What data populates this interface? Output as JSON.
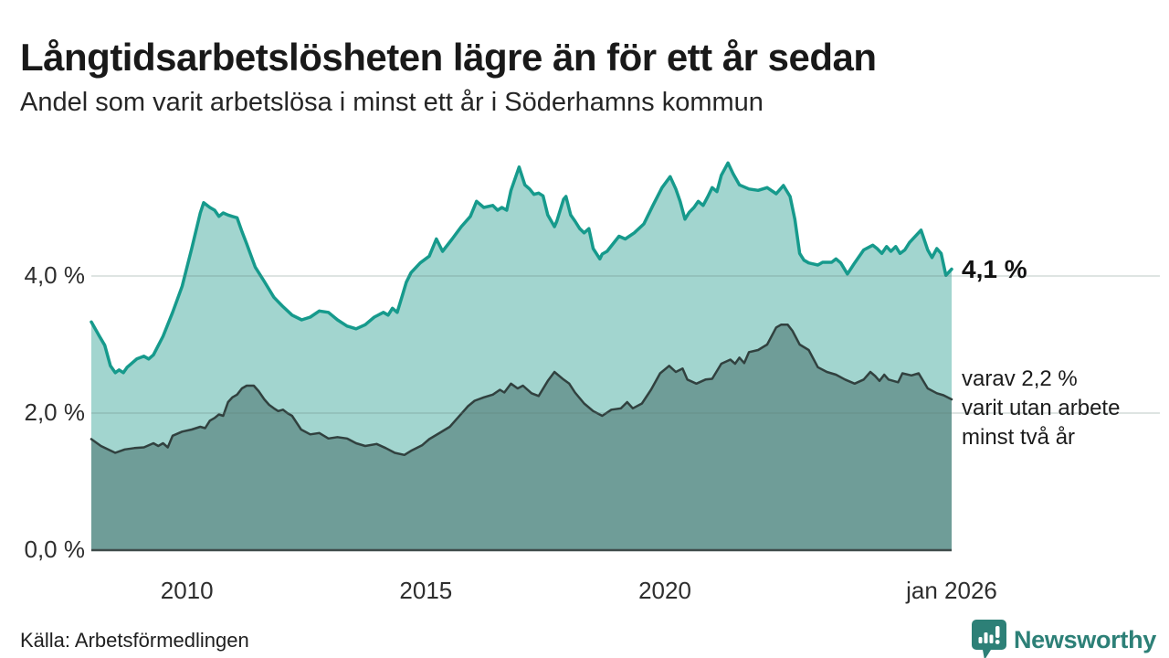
{
  "header": {
    "title": "Långtidsarbetslösheten lägre än för ett år sedan",
    "subtitle": "Andel som varit arbetslösa i minst ett år i Söderhamns kommun"
  },
  "footer": {
    "source": "Källa: Arbetsförmedlingen",
    "brand": "Newsworthy"
  },
  "colors": {
    "line_total": "#169a8c",
    "fill_total": "#a2d5cf",
    "line_subset": "#31413f",
    "fill_subset": "#6f9d98",
    "grid": "#5f7a78",
    "baseline": "#3f4b4a",
    "brand_teal": "#2d8077"
  },
  "chart_data": {
    "type": "area",
    "title": "Långtidsarbetslösheten lägre än för ett år sedan",
    "subtitle": "Andel som varit arbetslösa i minst ett år i Söderhamns kommun",
    "xlabel": "",
    "ylabel": "%",
    "x_range": [
      2008,
      2026
    ],
    "y_range": [
      0,
      6
    ],
    "grid": "horizontal",
    "legend": "annotated-at-line-end",
    "x_axis": {
      "ticks": [
        {
          "year": 2010,
          "label": "2010"
        },
        {
          "year": 2015,
          "label": "2015"
        },
        {
          "year": 2020,
          "label": "2020"
        },
        {
          "year": 2026,
          "label": "jan 2026"
        }
      ]
    },
    "y_axis": {
      "unit": "%",
      "ticks": [
        {
          "value": 0,
          "label": "0,0 %"
        },
        {
          "value": 2,
          "label": "2,0 %"
        },
        {
          "value": 4,
          "label": "4,0 %"
        }
      ]
    },
    "series": [
      {
        "name": "minst ett år",
        "end_value_label": "4,1 %",
        "points": [
          [
            2008.0,
            3.33
          ],
          [
            2008.17,
            3.12
          ],
          [
            2008.28,
            2.99
          ],
          [
            2008.4,
            2.69
          ],
          [
            2008.5,
            2.59
          ],
          [
            2008.58,
            2.63
          ],
          [
            2008.67,
            2.59
          ],
          [
            2008.75,
            2.67
          ],
          [
            2008.85,
            2.73
          ],
          [
            2008.95,
            2.79
          ],
          [
            2009.1,
            2.83
          ],
          [
            2009.2,
            2.79
          ],
          [
            2009.3,
            2.85
          ],
          [
            2009.5,
            3.12
          ],
          [
            2009.7,
            3.47
          ],
          [
            2009.9,
            3.85
          ],
          [
            2010.1,
            4.4
          ],
          [
            2010.28,
            4.92
          ],
          [
            2010.35,
            5.07
          ],
          [
            2010.48,
            5.0
          ],
          [
            2010.58,
            4.96
          ],
          [
            2010.67,
            4.87
          ],
          [
            2010.76,
            4.92
          ],
          [
            2010.86,
            4.89
          ],
          [
            2010.95,
            4.87
          ],
          [
            2011.05,
            4.85
          ],
          [
            2011.15,
            4.65
          ],
          [
            2011.25,
            4.47
          ],
          [
            2011.43,
            4.13
          ],
          [
            2011.62,
            3.92
          ],
          [
            2011.82,
            3.69
          ],
          [
            2012.0,
            3.56
          ],
          [
            2012.2,
            3.43
          ],
          [
            2012.4,
            3.36
          ],
          [
            2012.58,
            3.4
          ],
          [
            2012.77,
            3.49
          ],
          [
            2012.96,
            3.47
          ],
          [
            2013.15,
            3.36
          ],
          [
            2013.35,
            3.27
          ],
          [
            2013.54,
            3.23
          ],
          [
            2013.73,
            3.29
          ],
          [
            2013.92,
            3.4
          ],
          [
            2014.11,
            3.47
          ],
          [
            2014.21,
            3.43
          ],
          [
            2014.3,
            3.53
          ],
          [
            2014.4,
            3.47
          ],
          [
            2014.5,
            3.7
          ],
          [
            2014.59,
            3.91
          ],
          [
            2014.69,
            4.05
          ],
          [
            2014.88,
            4.19
          ],
          [
            2015.07,
            4.29
          ],
          [
            2015.22,
            4.54
          ],
          [
            2015.35,
            4.36
          ],
          [
            2015.55,
            4.54
          ],
          [
            2015.74,
            4.72
          ],
          [
            2015.93,
            4.87
          ],
          [
            2016.06,
            5.09
          ],
          [
            2016.21,
            5.0
          ],
          [
            2016.4,
            5.03
          ],
          [
            2016.5,
            4.96
          ],
          [
            2016.59,
            5.0
          ],
          [
            2016.69,
            4.96
          ],
          [
            2016.78,
            5.25
          ],
          [
            2016.95,
            5.59
          ],
          [
            2017.07,
            5.33
          ],
          [
            2017.17,
            5.27
          ],
          [
            2017.26,
            5.19
          ],
          [
            2017.36,
            5.21
          ],
          [
            2017.45,
            5.17
          ],
          [
            2017.55,
            4.89
          ],
          [
            2017.69,
            4.72
          ],
          [
            2017.74,
            4.8
          ],
          [
            2017.88,
            5.12
          ],
          [
            2017.93,
            5.16
          ],
          [
            2018.03,
            4.89
          ],
          [
            2018.12,
            4.8
          ],
          [
            2018.22,
            4.69
          ],
          [
            2018.31,
            4.63
          ],
          [
            2018.41,
            4.69
          ],
          [
            2018.5,
            4.4
          ],
          [
            2018.64,
            4.25
          ],
          [
            2018.69,
            4.32
          ],
          [
            2018.79,
            4.36
          ],
          [
            2019.04,
            4.58
          ],
          [
            2019.17,
            4.54
          ],
          [
            2019.36,
            4.63
          ],
          [
            2019.56,
            4.76
          ],
          [
            2019.75,
            5.03
          ],
          [
            2019.94,
            5.29
          ],
          [
            2020.11,
            5.45
          ],
          [
            2020.23,
            5.27
          ],
          [
            2020.32,
            5.09
          ],
          [
            2020.42,
            4.83
          ],
          [
            2020.51,
            4.93
          ],
          [
            2020.61,
            5.0
          ],
          [
            2020.7,
            5.09
          ],
          [
            2020.8,
            5.03
          ],
          [
            2020.9,
            5.16
          ],
          [
            2020.99,
            5.29
          ],
          [
            2021.09,
            5.23
          ],
          [
            2021.18,
            5.47
          ],
          [
            2021.32,
            5.65
          ],
          [
            2021.43,
            5.49
          ],
          [
            2021.56,
            5.33
          ],
          [
            2021.76,
            5.27
          ],
          [
            2021.95,
            5.25
          ],
          [
            2022.14,
            5.29
          ],
          [
            2022.33,
            5.2
          ],
          [
            2022.48,
            5.32
          ],
          [
            2022.62,
            5.16
          ],
          [
            2022.72,
            4.83
          ],
          [
            2022.82,
            4.33
          ],
          [
            2022.91,
            4.23
          ],
          [
            2023.01,
            4.19
          ],
          [
            2023.2,
            4.16
          ],
          [
            2023.3,
            4.2
          ],
          [
            2023.49,
            4.2
          ],
          [
            2023.58,
            4.25
          ],
          [
            2023.68,
            4.19
          ],
          [
            2023.82,
            4.03
          ],
          [
            2023.97,
            4.19
          ],
          [
            2024.16,
            4.38
          ],
          [
            2024.35,
            4.45
          ],
          [
            2024.44,
            4.4
          ],
          [
            2024.54,
            4.33
          ],
          [
            2024.64,
            4.43
          ],
          [
            2024.73,
            4.36
          ],
          [
            2024.83,
            4.43
          ],
          [
            2024.92,
            4.33
          ],
          [
            2025.02,
            4.38
          ],
          [
            2025.12,
            4.49
          ],
          [
            2025.36,
            4.67
          ],
          [
            2025.5,
            4.38
          ],
          [
            2025.59,
            4.27
          ],
          [
            2025.69,
            4.4
          ],
          [
            2025.78,
            4.33
          ],
          [
            2025.88,
            4.01
          ],
          [
            2026.0,
            4.1
          ]
        ]
      },
      {
        "name": "minst två år",
        "end_value_label": "2,2 %",
        "points": [
          [
            2008.0,
            1.62
          ],
          [
            2008.2,
            1.52
          ],
          [
            2008.5,
            1.42
          ],
          [
            2008.7,
            1.47
          ],
          [
            2008.9,
            1.49
          ],
          [
            2009.1,
            1.5
          ],
          [
            2009.3,
            1.56
          ],
          [
            2009.4,
            1.52
          ],
          [
            2009.5,
            1.56
          ],
          [
            2009.6,
            1.5
          ],
          [
            2009.7,
            1.67
          ],
          [
            2009.9,
            1.73
          ],
          [
            2010.1,
            1.76
          ],
          [
            2010.28,
            1.8
          ],
          [
            2010.38,
            1.78
          ],
          [
            2010.48,
            1.89
          ],
          [
            2010.58,
            1.93
          ],
          [
            2010.67,
            1.98
          ],
          [
            2010.76,
            1.96
          ],
          [
            2010.86,
            2.16
          ],
          [
            2010.95,
            2.23
          ],
          [
            2011.05,
            2.27
          ],
          [
            2011.15,
            2.36
          ],
          [
            2011.25,
            2.4
          ],
          [
            2011.4,
            2.4
          ],
          [
            2011.5,
            2.32
          ],
          [
            2011.62,
            2.2
          ],
          [
            2011.72,
            2.12
          ],
          [
            2011.82,
            2.07
          ],
          [
            2011.91,
            2.03
          ],
          [
            2012.01,
            2.05
          ],
          [
            2012.1,
            2.0
          ],
          [
            2012.2,
            1.96
          ],
          [
            2012.39,
            1.76
          ],
          [
            2012.58,
            1.69
          ],
          [
            2012.77,
            1.71
          ],
          [
            2012.96,
            1.63
          ],
          [
            2013.15,
            1.65
          ],
          [
            2013.35,
            1.63
          ],
          [
            2013.54,
            1.56
          ],
          [
            2013.73,
            1.52
          ],
          [
            2013.97,
            1.55
          ],
          [
            2014.16,
            1.49
          ],
          [
            2014.35,
            1.42
          ],
          [
            2014.55,
            1.39
          ],
          [
            2014.69,
            1.45
          ],
          [
            2014.92,
            1.53
          ],
          [
            2015.07,
            1.62
          ],
          [
            2015.31,
            1.72
          ],
          [
            2015.5,
            1.8
          ],
          [
            2015.69,
            1.95
          ],
          [
            2015.88,
            2.1
          ],
          [
            2016.02,
            2.18
          ],
          [
            2016.21,
            2.23
          ],
          [
            2016.4,
            2.27
          ],
          [
            2016.55,
            2.34
          ],
          [
            2016.64,
            2.3
          ],
          [
            2016.78,
            2.43
          ],
          [
            2016.92,
            2.36
          ],
          [
            2017.03,
            2.4
          ],
          [
            2017.21,
            2.29
          ],
          [
            2017.36,
            2.25
          ],
          [
            2017.55,
            2.47
          ],
          [
            2017.69,
            2.6
          ],
          [
            2017.88,
            2.49
          ],
          [
            2018.0,
            2.43
          ],
          [
            2018.12,
            2.3
          ],
          [
            2018.31,
            2.14
          ],
          [
            2018.5,
            2.03
          ],
          [
            2018.69,
            1.96
          ],
          [
            2018.88,
            2.05
          ],
          [
            2019.08,
            2.07
          ],
          [
            2019.21,
            2.16
          ],
          [
            2019.33,
            2.07
          ],
          [
            2019.52,
            2.14
          ],
          [
            2019.71,
            2.34
          ],
          [
            2019.9,
            2.58
          ],
          [
            2020.09,
            2.69
          ],
          [
            2020.23,
            2.6
          ],
          [
            2020.37,
            2.65
          ],
          [
            2020.47,
            2.49
          ],
          [
            2020.66,
            2.43
          ],
          [
            2020.85,
            2.49
          ],
          [
            2020.99,
            2.5
          ],
          [
            2021.18,
            2.72
          ],
          [
            2021.37,
            2.78
          ],
          [
            2021.47,
            2.72
          ],
          [
            2021.56,
            2.81
          ],
          [
            2021.66,
            2.73
          ],
          [
            2021.76,
            2.89
          ],
          [
            2021.95,
            2.92
          ],
          [
            2022.14,
            3.0
          ],
          [
            2022.33,
            3.25
          ],
          [
            2022.43,
            3.29
          ],
          [
            2022.57,
            3.29
          ],
          [
            2022.67,
            3.2
          ],
          [
            2022.82,
            3.0
          ],
          [
            2023.01,
            2.92
          ],
          [
            2023.2,
            2.67
          ],
          [
            2023.39,
            2.6
          ],
          [
            2023.58,
            2.56
          ],
          [
            2023.77,
            2.49
          ],
          [
            2023.97,
            2.43
          ],
          [
            2024.16,
            2.49
          ],
          [
            2024.3,
            2.6
          ],
          [
            2024.4,
            2.54
          ],
          [
            2024.49,
            2.47
          ],
          [
            2024.59,
            2.56
          ],
          [
            2024.68,
            2.49
          ],
          [
            2024.88,
            2.45
          ],
          [
            2024.97,
            2.58
          ],
          [
            2025.16,
            2.55
          ],
          [
            2025.31,
            2.58
          ],
          [
            2025.5,
            2.36
          ],
          [
            2025.69,
            2.29
          ],
          [
            2025.83,
            2.26
          ],
          [
            2026.0,
            2.2
          ]
        ]
      }
    ],
    "annotations": {
      "total_label": "4,1 %",
      "subset_lines": [
        "varav 2,2 %",
        "varit utan arbete",
        "minst två år"
      ]
    }
  }
}
